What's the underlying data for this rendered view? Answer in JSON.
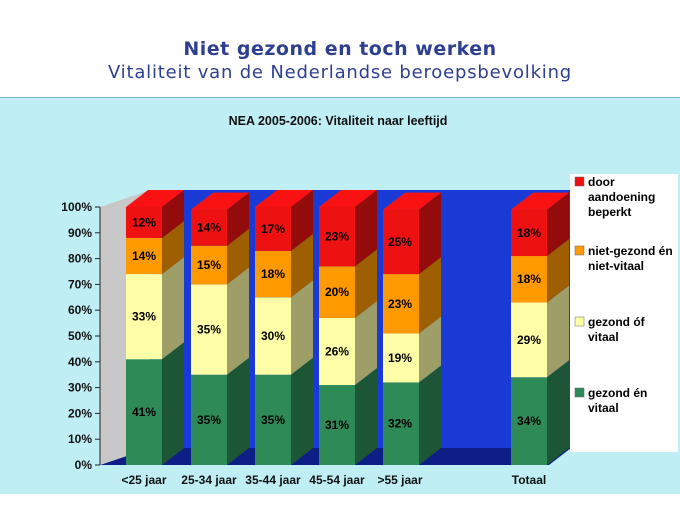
{
  "slide": {
    "title": "Niet gezond en toch werken",
    "subtitle": "Vitaliteit van de Nederlandse beroepsbevolking"
  },
  "chart_data": {
    "type": "bar",
    "stacked": true,
    "three_d": true,
    "title": "NEA 2005-2006: Vitaliteit naar leeftijd",
    "categories": [
      "<25 jaar",
      "25-34 jaar",
      "35-44 jaar",
      "45-54 jaar",
      ">55 jaar",
      "Totaal"
    ],
    "yticks": [
      "0%",
      "10%",
      "20%",
      "30%",
      "40%",
      "50%",
      "60%",
      "70%",
      "80%",
      "90%",
      "100%"
    ],
    "ylim": [
      0,
      100
    ],
    "series": [
      {
        "name": "gezond én vitaal",
        "color": "#2e8b57",
        "values": [
          41,
          35,
          35,
          31,
          32,
          34
        ],
        "labels": [
          "41%",
          "35%",
          "35%",
          "31%",
          "32%",
          "34%"
        ]
      },
      {
        "name": "gezond óf vitaal",
        "color": "#ffffa8",
        "values": [
          33,
          35,
          30,
          26,
          19,
          29
        ],
        "labels": [
          "33%",
          "35%",
          "30%",
          "26%",
          "19%",
          "29%"
        ]
      },
      {
        "name": "niet-gezond én niet-vitaal",
        "color": "#ff9900",
        "values": [
          14,
          15,
          18,
          20,
          23,
          18
        ],
        "labels": [
          "14%",
          "15%",
          "18%",
          "20%",
          "23%",
          "18%"
        ]
      },
      {
        "name": "door aandoening beperkt",
        "color": "#ee1111",
        "values": [
          12,
          14,
          17,
          23,
          25,
          18
        ],
        "labels": [
          "12%",
          "14%",
          "17%",
          "23%",
          "25%",
          "18%"
        ]
      }
    ],
    "legend": {
      "position": "right",
      "entries": [
        [
          "door",
          "aandoening",
          "beperkt"
        ],
        [
          "niet-gezond én",
          "niet-vitaal"
        ],
        [
          "gezond óf",
          "vitaal"
        ],
        [
          "gezond én",
          "vitaal"
        ]
      ]
    },
    "colors": {
      "back_wall": "#1a3ad6",
      "floor": "#0d1f86",
      "background": "#bfeff5"
    }
  }
}
